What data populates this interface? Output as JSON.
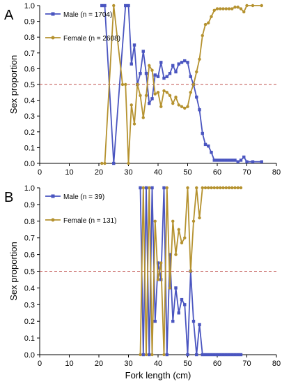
{
  "chart_data": [
    {
      "type": "line",
      "panel_label": "A",
      "title": "",
      "xlabel": "",
      "ylabel": "Sex proportion",
      "xlim": [
        0,
        80
      ],
      "ylim": [
        0,
        1
      ],
      "xticks": [
        0,
        10,
        20,
        30,
        40,
        50,
        60,
        70,
        80
      ],
      "yticks": [
        0.0,
        0.1,
        0.2,
        0.3,
        0.4,
        0.5,
        0.6,
        0.7,
        0.8,
        0.9,
        1.0
      ],
      "reference_line": {
        "y": 0.5,
        "color": "#c0504d",
        "style": "dashed"
      },
      "legend_position": "top-left",
      "series": [
        {
          "name": "Male (n = 1704)",
          "color": "#4a55c0",
          "marker": "square",
          "x": [
            21,
            22,
            25,
            29,
            30,
            31,
            32,
            33,
            34,
            35,
            36,
            37,
            38,
            39,
            40,
            41,
            42,
            43,
            44,
            45,
            46,
            47,
            48,
            49,
            50,
            51,
            52,
            53,
            54,
            55,
            56,
            57,
            58,
            59,
            60,
            61,
            62,
            63,
            64,
            65,
            66,
            67,
            68,
            69,
            70,
            72,
            75
          ],
          "y": [
            1.0,
            1.0,
            0.0,
            1.0,
            1.0,
            0.63,
            0.75,
            0.5,
            0.57,
            0.71,
            0.57,
            0.38,
            0.41,
            0.56,
            0.55,
            0.64,
            0.54,
            0.55,
            0.57,
            0.62,
            0.58,
            0.63,
            0.64,
            0.65,
            0.64,
            0.55,
            0.5,
            0.42,
            0.34,
            0.19,
            0.12,
            0.11,
            0.07,
            0.02,
            0.02,
            0.02,
            0.02,
            0.02,
            0.02,
            0.02,
            0.02,
            0.01,
            0.02,
            0.04,
            0.01,
            0.01,
            0.01
          ]
        },
        {
          "name": "Female (n = 2608)",
          "color": "#b5922f",
          "marker": "circle",
          "x": [
            21,
            22,
            25,
            28,
            29,
            30,
            31,
            32,
            33,
            34,
            35,
            36,
            37,
            38,
            39,
            40,
            41,
            42,
            43,
            44,
            45,
            46,
            47,
            48,
            49,
            50,
            51,
            52,
            53,
            54,
            55,
            56,
            57,
            58,
            59,
            60,
            61,
            62,
            63,
            64,
            65,
            66,
            67,
            68,
            69,
            70,
            72,
            75
          ],
          "y": [
            0.0,
            0.0,
            1.0,
            0.5,
            0.5,
            0.0,
            0.37,
            0.25,
            0.5,
            0.43,
            0.29,
            0.43,
            0.62,
            0.59,
            0.44,
            0.45,
            0.36,
            0.46,
            0.45,
            0.43,
            0.38,
            0.42,
            0.37,
            0.36,
            0.35,
            0.36,
            0.45,
            0.5,
            0.58,
            0.66,
            0.81,
            0.88,
            0.89,
            0.93,
            0.97,
            0.98,
            0.98,
            0.98,
            0.98,
            0.98,
            0.98,
            0.99,
            0.99,
            0.98,
            0.96,
            1.0,
            1.0,
            1.0
          ]
        }
      ]
    },
    {
      "type": "line",
      "panel_label": "B",
      "title": "",
      "xlabel": "Fork length (cm)",
      "ylabel": "Sex proportion",
      "xlim": [
        0,
        80
      ],
      "ylim": [
        0,
        1
      ],
      "xticks": [
        0,
        10,
        20,
        30,
        40,
        50,
        60,
        70,
        80
      ],
      "yticks": [
        0.0,
        0.1,
        0.2,
        0.3,
        0.4,
        0.5,
        0.6,
        0.7,
        0.8,
        0.9,
        1.0
      ],
      "reference_line": {
        "y": 0.5,
        "color": "#c0504d",
        "style": "dashed"
      },
      "legend_position": "top-left",
      "series": [
        {
          "name": "Male (n = 39)",
          "color": "#4a55c0",
          "marker": "square",
          "x": [
            34,
            35,
            36,
            37,
            38,
            39,
            40,
            41,
            42,
            43,
            44,
            45,
            46,
            47,
            48,
            49,
            50,
            51,
            52,
            53,
            54,
            55,
            56,
            57,
            58,
            59,
            60,
            61,
            62,
            63,
            64,
            65,
            66,
            67,
            68
          ],
          "y": [
            1.0,
            0.0,
            1.0,
            0.0,
            1.0,
            0.2,
            0.55,
            0.45,
            1.0,
            0.0,
            0.6,
            0.2,
            0.4,
            0.25,
            0.33,
            0.3,
            0.0,
            0.5,
            0.2,
            0.0,
            0.18,
            0.0,
            0.0,
            0.0,
            0.0,
            0.0,
            0.0,
            0.0,
            0.0,
            0.0,
            0.0,
            0.0,
            0.0,
            0.0,
            0.0
          ]
        },
        {
          "name": "Female (n = 131)",
          "color": "#b5922f",
          "marker": "circle",
          "x": [
            34,
            35,
            36,
            37,
            38,
            39,
            40,
            41,
            42,
            43,
            44,
            45,
            46,
            47,
            48,
            49,
            50,
            51,
            52,
            53,
            54,
            55,
            56,
            57,
            58,
            59,
            60,
            61,
            62,
            63,
            64,
            65,
            66,
            67,
            68
          ],
          "y": [
            0.0,
            1.0,
            0.0,
            1.0,
            0.0,
            0.8,
            0.45,
            0.55,
            0.0,
            1.0,
            0.4,
            0.8,
            0.6,
            0.75,
            0.67,
            0.7,
            1.0,
            0.5,
            0.8,
            1.0,
            0.82,
            1.0,
            1.0,
            1.0,
            1.0,
            1.0,
            1.0,
            1.0,
            1.0,
            1.0,
            1.0,
            1.0,
            1.0,
            1.0,
            1.0
          ]
        }
      ]
    }
  ]
}
